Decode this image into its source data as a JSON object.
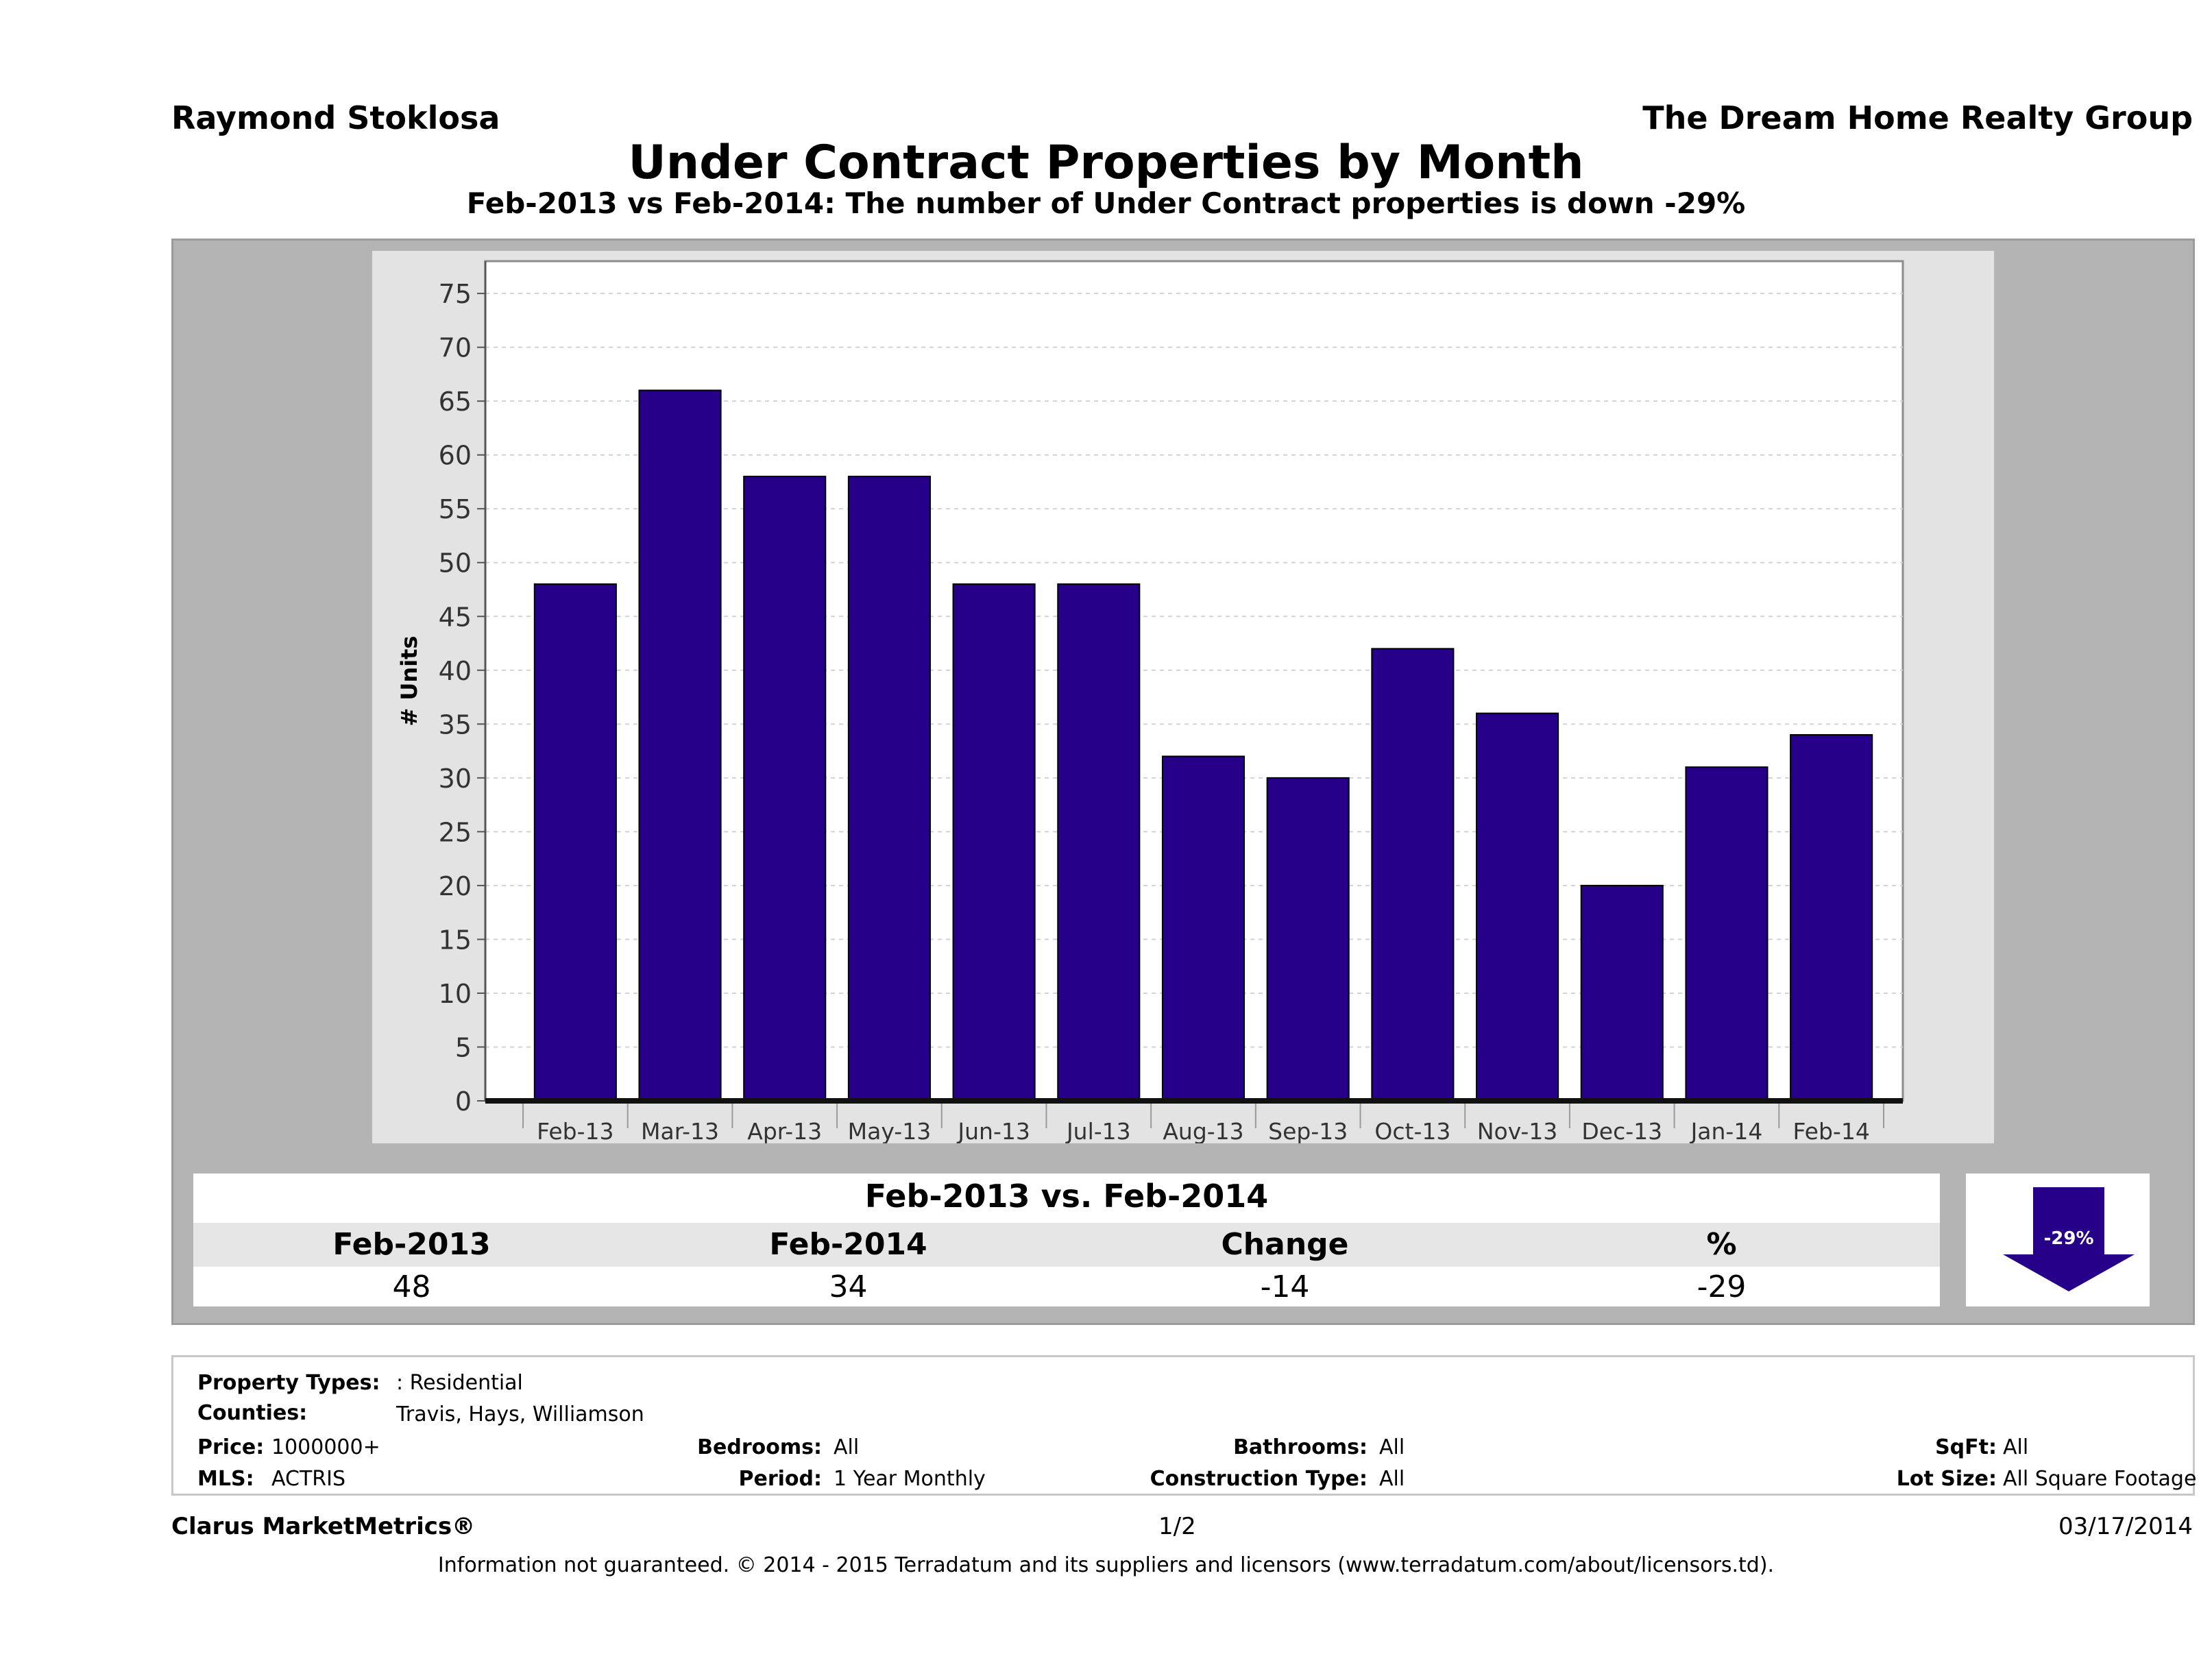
{
  "header": {
    "agent": "Raymond Stoklosa",
    "company": "The Dream Home Realty Group",
    "title": "Under Contract Properties by Month",
    "subtitle": "Feb-2013 vs Feb-2014: The number of Under Contract  properties is down -29%"
  },
  "chart_data": {
    "type": "bar",
    "title": "",
    "xlabel": "",
    "ylabel": "# Units",
    "ylim": [
      0,
      78
    ],
    "yticks": [
      0,
      5,
      10,
      15,
      20,
      25,
      30,
      35,
      40,
      45,
      50,
      55,
      60,
      65,
      70,
      75
    ],
    "categories": [
      "Feb-13",
      "Mar-13",
      "Apr-13",
      "May-13",
      "Jun-13",
      "Jul-13",
      "Aug-13",
      "Sep-13",
      "Oct-13",
      "Nov-13",
      "Dec-13",
      "Jan-14",
      "Feb-14"
    ],
    "values": [
      48,
      66,
      58,
      58,
      48,
      48,
      32,
      30,
      42,
      36,
      20,
      31,
      34
    ],
    "bar_color": "#260088",
    "grid": true,
    "legend": "none"
  },
  "comparison": {
    "title": "Feb-2013 vs. Feb-2014",
    "headers": [
      "Feb-2013",
      "Feb-2014",
      "Change",
      "%"
    ],
    "values": [
      "48",
      "34",
      "-14",
      "-29"
    ],
    "badge": "-29%",
    "badge_color": "#260088"
  },
  "filters": {
    "property_types_label": "Property Types:",
    "property_types": ": Residential",
    "counties_label": "Counties:",
    "counties": "Travis, Hays, Williamson",
    "price_label": "Price:",
    "price": "1000000+",
    "mls_label": "MLS:",
    "mls": "ACTRIS",
    "bedrooms_label": "Bedrooms:",
    "bedrooms": "All",
    "period_label": "Period:",
    "period": "1 Year Monthly",
    "bathrooms_label": "Bathrooms:",
    "bathrooms": "All",
    "construction_label": "Construction Type:",
    "construction": "All",
    "sqft_label": "SqFt:",
    "sqft": "All",
    "lot_label": "Lot Size:",
    "lot": "All Square Footage"
  },
  "footer": {
    "brand": "Clarus MarketMetrics®",
    "page": "1/2",
    "date": "03/17/2014",
    "disclaimer": "Information not guaranteed. © 2014 - 2015 Terradatum and its suppliers and licensors (www.terradatum.com/about/licensors.td)."
  }
}
